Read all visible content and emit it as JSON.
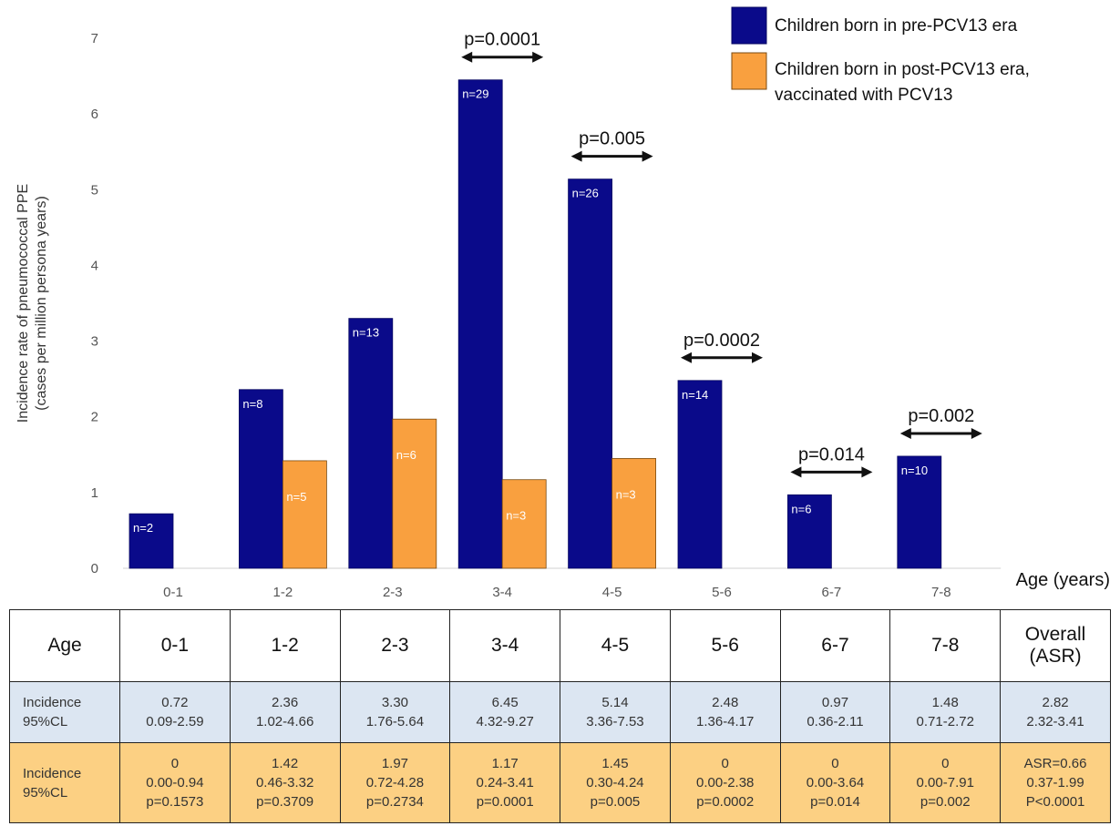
{
  "chart_data": {
    "type": "bar",
    "categories": [
      "0-1",
      "1-2",
      "2-3",
      "3-4",
      "4-5",
      "5-6",
      "6-7",
      "7-8"
    ],
    "series": [
      {
        "name": "Children born in pre-PCV13 era",
        "color": "#0a0a8a",
        "values": [
          0.72,
          2.36,
          3.3,
          6.45,
          5.14,
          2.48,
          0.97,
          1.48
        ],
        "labels": [
          "n=2",
          "n=8",
          "n=13",
          "n=29",
          "n=26",
          "n=14",
          "n=6",
          "n=10"
        ]
      },
      {
        "name": "Children born in post-PCV13 era, vaccinated with PCV13",
        "color": "#f9a03f",
        "values": [
          0,
          1.42,
          1.97,
          1.17,
          1.45,
          0,
          0,
          0
        ],
        "labels": [
          "",
          "n=5",
          "n=6",
          "n=3",
          "n=3",
          "",
          "",
          ""
        ]
      }
    ],
    "ylabel_lines": [
      "Incidence rate of pneumococcal PPE",
      "(cases per million persona years)"
    ],
    "xlabel": "Age (years)",
    "ylim": [
      0,
      7
    ],
    "yticks": [
      0,
      1,
      2,
      3,
      4,
      5,
      6,
      7
    ],
    "grid": false,
    "legend_position": "top-right",
    "annotations": [
      {
        "category": "3-4",
        "text": "p=0.0001"
      },
      {
        "category": "4-5",
        "text": "p=0.005"
      },
      {
        "category": "5-6",
        "text": "p=0.0002"
      },
      {
        "category": "6-7",
        "text": "p=0.014"
      },
      {
        "category": "7-8",
        "text": "p=0.002"
      }
    ]
  },
  "table": {
    "headers": [
      "Age",
      "0-1",
      "1-2",
      "2-3",
      "3-4",
      "4-5",
      "5-6",
      "6-7",
      "7-8",
      "Overall\n(ASR)"
    ],
    "rows": [
      {
        "label": "Incidence\n95%CL",
        "cells": [
          "0.72\n0.09-2.59",
          "2.36\n1.02-4.66",
          "3.30\n1.76-5.64",
          "6.45\n4.32-9.27",
          "5.14\n3.36-7.53",
          "2.48\n1.36-4.17",
          "0.97\n0.36-2.11",
          "1.48\n0.71-2.72",
          "2.82\n2.32-3.41"
        ]
      },
      {
        "label": "Incidence\n95%CL",
        "cells": [
          "0\n0.00-0.94\np=0.1573",
          "1.42\n0.46-3.32\np=0.3709",
          "1.97\n0.72-4.28\np=0.2734",
          "1.17\n0.24-3.41\np=0.0001",
          "1.45\n0.30-4.24\np=0.005",
          "0\n0.00-2.38\np=0.0002",
          "0\n0.00-3.64\np=0.014",
          "0\n0.00-7.91\np=0.002",
          "ASR=0.66\n0.37-1.99\nP<0.0001"
        ]
      }
    ]
  }
}
